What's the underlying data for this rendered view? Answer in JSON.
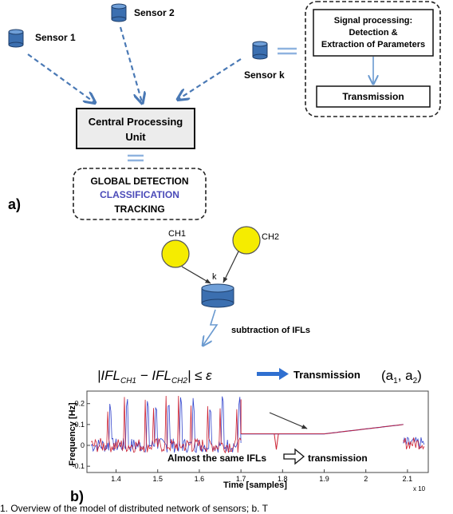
{
  "top": {
    "sensors": [
      "Sensor 1",
      "Sensor 2",
      "Sensor k"
    ],
    "cpu": [
      "Central Processing",
      "Unit"
    ],
    "global": [
      "GLOBAL DETECTION",
      "CLASSIFICATION",
      "TRACKING"
    ],
    "signal_processing": [
      "Signal processing:",
      "Detection &",
      "Extraction of Parameters"
    ],
    "transmission": "Transmission",
    "panel_label": "a)"
  },
  "middle": {
    "channels": [
      "CH1",
      "CH2"
    ],
    "node": "k",
    "subtraction": "subtraction of IFLs"
  },
  "formula": {
    "lhs": "|IFL",
    "sub1": "CH1",
    "minus": " − IFL",
    "sub2": "CH2",
    "rhs": "| ≤ ε",
    "arrow_label": "Transmission",
    "tuple": "(a",
    "tuple_s1": "1",
    "tuple_mid": ", a",
    "tuple_s2": "2",
    "tuple_end": ")"
  },
  "plot": {
    "ylabel": "Frequency [Hz]",
    "xlabel": "Time [samples]",
    "xticks": [
      "1.4",
      "1.5",
      "1.6",
      "1.7",
      "1.8",
      "1.9",
      "2",
      "2.1"
    ],
    "xexp": "x 10",
    "yticks": [
      "0.2",
      "0.1",
      "0",
      "-0.1"
    ],
    "annotation": "Almost the same IFLs",
    "annotation_after": "transmission",
    "panel_label": "b)",
    "colors": {
      "ch1": "#cc2233",
      "ch2": "#3344cc"
    }
  },
  "caption": "1.  Overview of the model of distributed network of sensors; b. T"
}
